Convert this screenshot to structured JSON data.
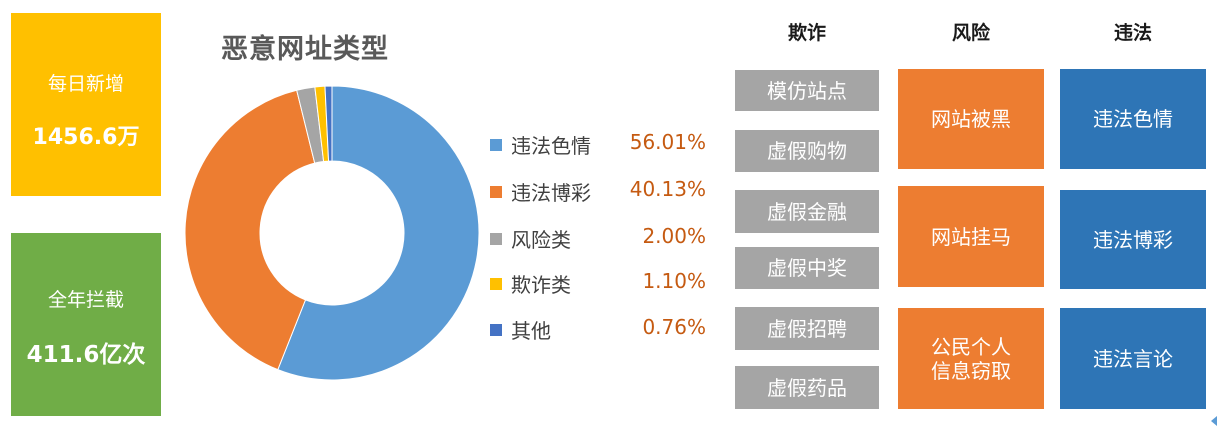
{
  "stats": {
    "daily": {
      "label": "每日新增",
      "value": "1456.6万",
      "color": "#FFC000"
    },
    "yearly": {
      "label": "全年拦截",
      "value": "411.6亿次",
      "color": "#70AD47"
    }
  },
  "chart_data": {
    "type": "pie",
    "subtype": "donut",
    "title": "恶意网址类型",
    "categories": [
      "违法色情",
      "违法博彩",
      "风险类",
      "欺诈类",
      "其他"
    ],
    "values": [
      56.01,
      40.13,
      2.0,
      1.1,
      0.76
    ],
    "value_labels": [
      "56.01%",
      "40.13%",
      "2.00%",
      "1.10%",
      "0.76%"
    ],
    "colors": [
      "#5B9BD5",
      "#ED7D31",
      "#A5A5A5",
      "#FFC000",
      "#4472C4"
    ],
    "unit": "%",
    "start_angle": "12 o'clock, clockwise",
    "legend_position": "right"
  },
  "legend": {
    "items": [
      {
        "label": "违法色情",
        "value": "56.01%",
        "color": "#5B9BD5"
      },
      {
        "label": "违法博彩",
        "value": "40.13%",
        "color": "#ED7D31"
      },
      {
        "label": "风险类",
        "value": "2.00%",
        "color": "#A5A5A5"
      },
      {
        "label": "欺诈类",
        "value": "1.10%",
        "color": "#FFC000"
      },
      {
        "label": "其他",
        "value": "0.76%",
        "color": "#4472C4"
      }
    ]
  },
  "categories_panel": {
    "columns": [
      {
        "header": "欺诈",
        "color": "#A5A5A5",
        "items": [
          "模仿站点",
          "虚假购物",
          "虚假金融",
          "虚假中奖",
          "虚假招聘",
          "虚假药品"
        ]
      },
      {
        "header": "风险",
        "color": "#ED7D31",
        "items": [
          "网站被黑",
          "网站挂马",
          "公民个人\n信息窃取"
        ]
      },
      {
        "header": "违法",
        "color": "#2E75B6",
        "items": [
          "违法色情",
          "违法博彩",
          "违法言论"
        ]
      }
    ]
  }
}
